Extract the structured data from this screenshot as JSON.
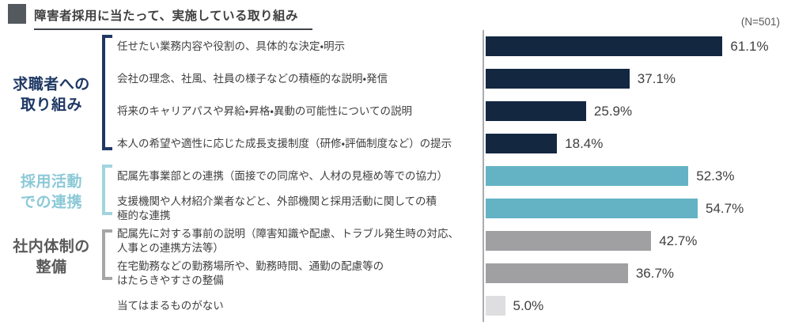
{
  "header": {
    "title": "障害者採用に当たって、実施している取り組み",
    "sample_size": "(N=501)"
  },
  "chart_data": {
    "type": "bar",
    "orientation": "horizontal",
    "title": "障害者採用に当たって、実施している取り組み",
    "sample_note": "(N=501)",
    "unit": "%",
    "xlim": [
      0,
      84
    ],
    "grid": false,
    "legend": false,
    "groups": [
      {
        "label": "求職者への\n取り組み",
        "text_color": "#1F3864",
        "bracket_color": "#1F3864",
        "row_start": 0,
        "row_end": 3
      },
      {
        "label": "採用活動\nでの連携",
        "text_color": "#8CC9D7",
        "bracket_color": "#A3D4DE",
        "row_start": 4,
        "row_end": 5
      },
      {
        "label": "社内体制の\n整備",
        "text_color": "#595959",
        "bracket_color": "#A6A6A6",
        "row_start": 6,
        "row_end": 7
      }
    ],
    "rows": [
      {
        "label": "任せたい業務内容や役割の、具体的な決定・明示",
        "value": 61.1,
        "value_label": "61.1%",
        "color": "#132741"
      },
      {
        "label": "会社の理念、社風、社員の様子などの積極的な説明・発信",
        "value": 37.1,
        "value_label": "37.1%",
        "color": "#132741"
      },
      {
        "label": "将来のキャリアパスや昇給・昇格・異動の可能性についての説明",
        "value": 25.9,
        "value_label": "25.9%",
        "color": "#132741"
      },
      {
        "label": "本人の希望や適性に応じた成長支援制度（研修・評価制度など）の提示",
        "value": 18.4,
        "value_label": "18.4%",
        "color": "#132741"
      },
      {
        "label": "配属先事業部との連携（面接での同席や、人材の見極め等での協力）",
        "value": 52.3,
        "value_label": "52.3%",
        "color": "#63B3C4"
      },
      {
        "label": "支援機関や人材紹介業者などと、外部機関と採用活動に関しての積\n極的な連携",
        "value": 54.7,
        "value_label": "54.7%",
        "color": "#63B3C4"
      },
      {
        "label": "配属先に対する事前の説明（障害知識や配慮、トラブル発生時の対応、\n人事との連携方法等）",
        "value": 42.7,
        "value_label": "42.7%",
        "color": "#A0A0A2"
      },
      {
        "label": "在宅勤務などの勤務場所や、勤務時間、通勤の配慮等の\nはたらきやすさの整備",
        "value": 36.7,
        "value_label": "36.7%",
        "color": "#A0A0A2"
      },
      {
        "label": "当てはまるものがない",
        "value": 5.0,
        "value_label": "5.0%",
        "color": "#DEDEE0"
      }
    ]
  },
  "colors": {
    "navy_bar": "#132741",
    "teal_bar": "#63B3C4",
    "gray_bar": "#A0A0A2",
    "light_gray_bar": "#DEDEE0",
    "axis_line": "#ABACB0",
    "title_text": "#404040",
    "label_text": "#3F3F3F",
    "value_text": "#3F3F3F"
  }
}
